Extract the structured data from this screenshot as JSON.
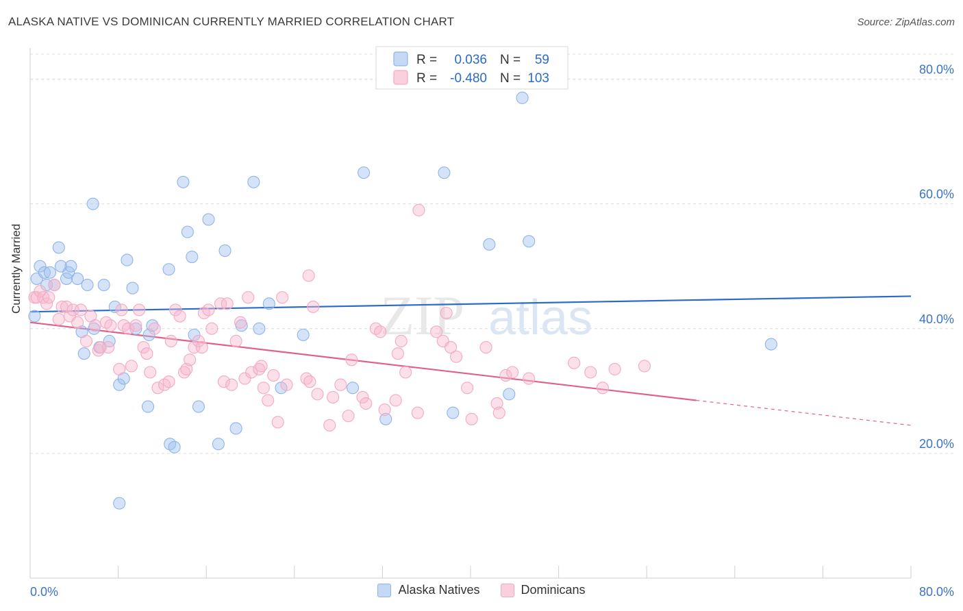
{
  "title": "ALASKA NATIVE VS DOMINICAN CURRENTLY MARRIED CORRELATION CHART",
  "source": "Source: ZipAtlas.com",
  "watermark": {
    "part1": "ZIP",
    "part2": "atlas"
  },
  "chart_data": {
    "type": "scatter",
    "xlabel": "",
    "ylabel": "Currently Married",
    "xlim": [
      0,
      80
    ],
    "ylim": [
      0,
      85
    ],
    "x_tick_labels": [
      "0.0%",
      "80.0%"
    ],
    "y_ticks": [
      20,
      40,
      60,
      80
    ],
    "y_tick_labels": [
      "20.0%",
      "40.0%",
      "60.0%",
      "80.0%"
    ],
    "grid": "horizontal dashed",
    "legend_placement": "top-center",
    "legend": [
      {
        "r_label": "R =",
        "r_value": "0.036",
        "n_label": "N =",
        "n_value": "59"
      },
      {
        "r_label": "R =",
        "r_value": "-0.480",
        "n_label": "N =",
        "n_value": "103"
      }
    ],
    "series": [
      {
        "name": "Alaska Natives",
        "color": "#8fb4e8",
        "line_color": "#2a6ac8",
        "trend": {
          "x0": 0,
          "y0": 42.7,
          "x1": 80,
          "y1": 45.2
        },
        "points": [
          [
            0.4,
            42
          ],
          [
            0.6,
            48
          ],
          [
            0.9,
            50
          ],
          [
            1.3,
            49
          ],
          [
            1.5,
            47
          ],
          [
            1.8,
            49
          ],
          [
            2.2,
            47
          ],
          [
            2.6,
            53
          ],
          [
            2.8,
            50
          ],
          [
            3.3,
            48
          ],
          [
            3.5,
            49
          ],
          [
            3.7,
            50
          ],
          [
            4.3,
            48
          ],
          [
            4.7,
            39.5
          ],
          [
            4.9,
            36
          ],
          [
            5.2,
            47
          ],
          [
            5.7,
            60
          ],
          [
            5.8,
            40
          ],
          [
            6.3,
            37
          ],
          [
            6.7,
            47
          ],
          [
            7.2,
            38
          ],
          [
            7.7,
            43.5
          ],
          [
            8.1,
            31
          ],
          [
            8.1,
            12
          ],
          [
            8.5,
            32
          ],
          [
            8.8,
            51
          ],
          [
            9.3,
            46.5
          ],
          [
            9.6,
            40
          ],
          [
            10.7,
            27.5
          ],
          [
            10.8,
            39
          ],
          [
            11.1,
            40.5
          ],
          [
            12.6,
            49.5
          ],
          [
            12.7,
            21.5
          ],
          [
            13.1,
            21
          ],
          [
            13.9,
            63.5
          ],
          [
            14.3,
            55.5
          ],
          [
            14.7,
            51.5
          ],
          [
            14.9,
            39
          ],
          [
            15.3,
            27.5
          ],
          [
            16.2,
            57.5
          ],
          [
            17.1,
            21.5
          ],
          [
            17.7,
            52.5
          ],
          [
            18.7,
            24
          ],
          [
            19.2,
            40.5
          ],
          [
            20.3,
            63.5
          ],
          [
            20.8,
            40
          ],
          [
            21.7,
            44
          ],
          [
            22.8,
            30.5
          ],
          [
            24.8,
            39
          ],
          [
            29.3,
            30.5
          ],
          [
            30.3,
            65
          ],
          [
            32.3,
            25.5
          ],
          [
            37.6,
            65
          ],
          [
            38.4,
            26.5
          ],
          [
            41.7,
            53.5
          ],
          [
            43.5,
            29.5
          ],
          [
            44.7,
            77
          ],
          [
            45.3,
            54
          ],
          [
            67.3,
            37.5
          ]
        ]
      },
      {
        "name": "Dominicans",
        "color": "#f3a9c3",
        "line_color": "#e0608c",
        "trend": {
          "x0": 0,
          "y0": 41.0,
          "x1": 60.5,
          "y1": 28.5,
          "dash_x1": 80,
          "dash_y1": 24.5
        },
        "points": [
          [
            0.4,
            45
          ],
          [
            0.6,
            45
          ],
          [
            0.9,
            46
          ],
          [
            1.2,
            45
          ],
          [
            1.5,
            44
          ],
          [
            1.7,
            45
          ],
          [
            2.2,
            47
          ],
          [
            2.6,
            41.5
          ],
          [
            2.9,
            43.5
          ],
          [
            3.3,
            43.5
          ],
          [
            3.6,
            42
          ],
          [
            3.9,
            43
          ],
          [
            4.3,
            41
          ],
          [
            4.6,
            43
          ],
          [
            5.1,
            38
          ],
          [
            5.5,
            42
          ],
          [
            5.9,
            40.5
          ],
          [
            6.2,
            36.5
          ],
          [
            6.4,
            37
          ],
          [
            6.9,
            41
          ],
          [
            7.1,
            37
          ],
          [
            7.3,
            40.5
          ],
          [
            8.1,
            33.5
          ],
          [
            8.3,
            43
          ],
          [
            8.5,
            40.5
          ],
          [
            8.9,
            40
          ],
          [
            9.2,
            34
          ],
          [
            9.6,
            40.5
          ],
          [
            9.9,
            43
          ],
          [
            10.3,
            37
          ],
          [
            10.6,
            36
          ],
          [
            10.9,
            33
          ],
          [
            11.3,
            40
          ],
          [
            11.6,
            30.5
          ],
          [
            12.2,
            31
          ],
          [
            12.6,
            31.5
          ],
          [
            12.8,
            38
          ],
          [
            13.2,
            43
          ],
          [
            13.6,
            42
          ],
          [
            14.0,
            33
          ],
          [
            14.2,
            33.5
          ],
          [
            14.5,
            35
          ],
          [
            14.9,
            37
          ],
          [
            15.3,
            38
          ],
          [
            15.8,
            42.5
          ],
          [
            16.2,
            43
          ],
          [
            16.5,
            40
          ],
          [
            17.3,
            44
          ],
          [
            17.6,
            31.5
          ],
          [
            17.9,
            44
          ],
          [
            18.3,
            31
          ],
          [
            18.7,
            38
          ],
          [
            19.1,
            41
          ],
          [
            19.5,
            32
          ],
          [
            19.8,
            45
          ],
          [
            20.1,
            33
          ],
          [
            20.8,
            33.5
          ],
          [
            21.0,
            34
          ],
          [
            21.2,
            30.5
          ],
          [
            21.6,
            28.5
          ],
          [
            22.1,
            32.5
          ],
          [
            22.5,
            25
          ],
          [
            22.9,
            45
          ],
          [
            23.3,
            31
          ],
          [
            25.1,
            32
          ],
          [
            25.4,
            31.5
          ],
          [
            25.7,
            43.5
          ],
          [
            26.1,
            29.5
          ],
          [
            27.2,
            24.5
          ],
          [
            27.5,
            29
          ],
          [
            28.2,
            31
          ],
          [
            28.9,
            26
          ],
          [
            29.2,
            35
          ],
          [
            30.2,
            29
          ],
          [
            30.5,
            28
          ],
          [
            31.4,
            40
          ],
          [
            31.8,
            39.5
          ],
          [
            32.2,
            27
          ],
          [
            33.2,
            28.5
          ],
          [
            33.4,
            36
          ],
          [
            33.7,
            38
          ],
          [
            34.1,
            33
          ],
          [
            35.2,
            26.5
          ],
          [
            35.3,
            59
          ],
          [
            36.9,
            39.5
          ],
          [
            37.5,
            38
          ],
          [
            37.8,
            42.5
          ],
          [
            38.2,
            37
          ],
          [
            38.7,
            35.5
          ],
          [
            39.7,
            30.5
          ],
          [
            40.1,
            25.5
          ],
          [
            41.4,
            37
          ],
          [
            42.4,
            28
          ],
          [
            42.6,
            26.5
          ],
          [
            43.2,
            32.5
          ],
          [
            43.8,
            33
          ],
          [
            45.3,
            32
          ],
          [
            49.4,
            34.5
          ],
          [
            50.9,
            33
          ],
          [
            52.0,
            30.5
          ],
          [
            53.1,
            33.5
          ],
          [
            55.8,
            34
          ],
          [
            25.3,
            48.5
          ],
          [
            15.6,
            37
          ]
        ]
      }
    ]
  }
}
